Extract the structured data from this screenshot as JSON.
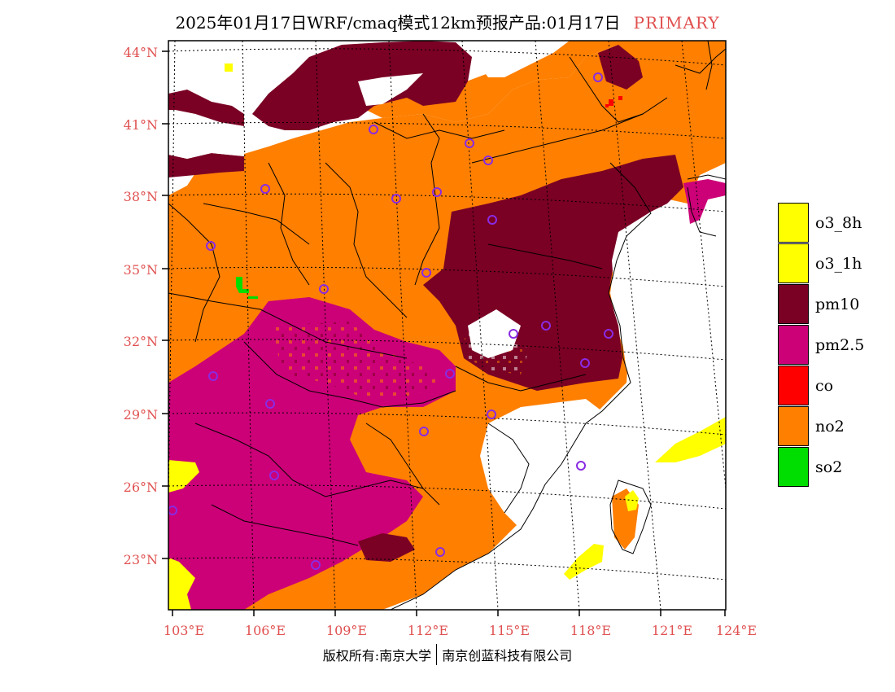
{
  "title": {
    "text": "2025年01月17日WRF/cmaq模式12km预报产品:01月17日",
    "tag": "PRIMARY",
    "tag_color": "#e05050"
  },
  "map": {
    "lat_labels": [
      "44°N",
      "41°N",
      "38°N",
      "35°N",
      "32°N",
      "29°N",
      "26°N",
      "23°N"
    ],
    "lon_labels": [
      "103°E",
      "106°E",
      "109°E",
      "112°E",
      "115°E",
      "118°E",
      "121°E",
      "124°E"
    ],
    "label_color": "#e05050"
  },
  "legend": {
    "items": [
      {
        "label": "o3_8h",
        "color": "#ffff00"
      },
      {
        "label": "o3_1h",
        "color": "#ffff00"
      },
      {
        "label": "pm10",
        "color": "#7a0024"
      },
      {
        "label": "pm2.5",
        "color": "#cc0077"
      },
      {
        "label": "co",
        "color": "#ff0000"
      },
      {
        "label": "no2",
        "color": "#ff7f00"
      },
      {
        "label": "so2",
        "color": "#00dd00"
      }
    ]
  },
  "footer": {
    "left": "版权所有:南京大学",
    "right": "南京创蓝科技有限公司"
  }
}
